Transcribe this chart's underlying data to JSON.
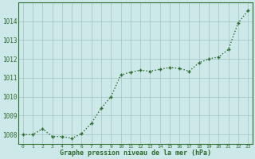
{
  "x": [
    0,
    1,
    2,
    3,
    4,
    5,
    6,
    7,
    8,
    9,
    10,
    11,
    12,
    13,
    14,
    15,
    16,
    17,
    18,
    19,
    20,
    21,
    22,
    23
  ],
  "y": [
    1008.0,
    1008.0,
    1008.3,
    1007.9,
    1007.9,
    1007.8,
    1008.05,
    1008.6,
    1009.4,
    1010.0,
    1011.15,
    1011.3,
    1011.4,
    1011.35,
    1011.45,
    1011.55,
    1011.5,
    1011.35,
    1011.8,
    1012.0,
    1012.1,
    1012.5,
    1013.9,
    1014.55
  ],
  "line_color": "#2d6a2d",
  "marker_color": "#2d6a2d",
  "bg_color": "#cce8e8",
  "grid_color": "#aac8c8",
  "xlabel": "Graphe pression niveau de la mer (hPa)",
  "xlabel_color": "#2d6a2d",
  "tick_color": "#2d6a2d",
  "ylim": [
    1007.5,
    1015.0
  ],
  "yticks": [
    1008,
    1009,
    1010,
    1011,
    1012,
    1013,
    1014
  ],
  "xticks": [
    0,
    1,
    2,
    3,
    4,
    5,
    6,
    7,
    8,
    9,
    10,
    11,
    12,
    13,
    14,
    15,
    16,
    17,
    18,
    19,
    20,
    21,
    22,
    23
  ],
  "marker_size": 3.0,
  "line_width": 1.0,
  "spine_color": "#2d6a2d"
}
